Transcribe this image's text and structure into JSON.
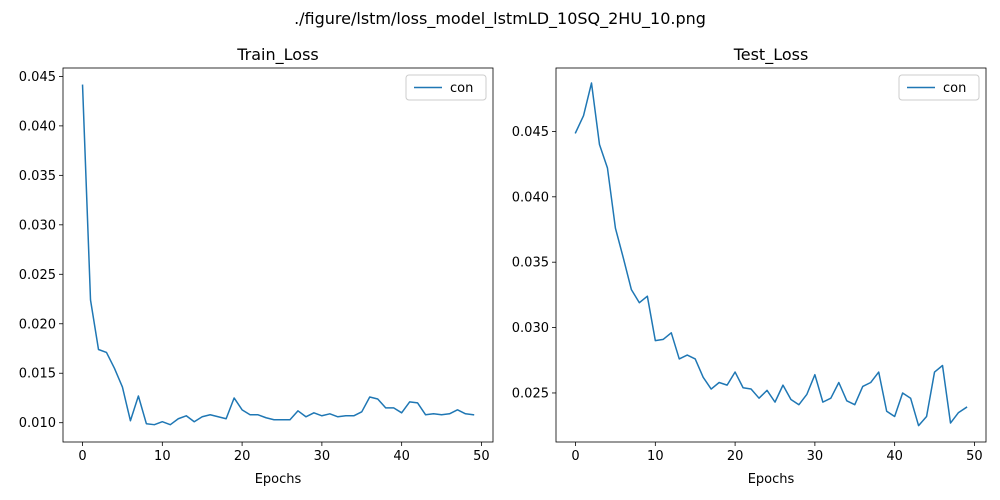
{
  "figure_title": "./figure/lstm/loss_model_lstmLD_10SQ_2HU_10.png",
  "colors": {
    "series": "#1f77b4",
    "axes": "#000000",
    "legend_border": "#cccccc"
  },
  "chart_data": [
    {
      "type": "line",
      "title": "Train_Loss",
      "xlabel": "Epochs",
      "ylabel": "",
      "xlim": [
        -2.45,
        51.45
      ],
      "ylim": [
        0.00805,
        0.04585
      ],
      "xticks": [
        0,
        10,
        20,
        30,
        40,
        50
      ],
      "xtick_labels": [
        "0",
        "10",
        "20",
        "30",
        "40",
        "50"
      ],
      "yticks": [
        0.01,
        0.015,
        0.02,
        0.025,
        0.03,
        0.035,
        0.04,
        0.045
      ],
      "ytick_labels": [
        "0.010",
        "0.015",
        "0.020",
        "0.025",
        "0.030",
        "0.035",
        "0.040",
        "0.045"
      ],
      "grid": false,
      "legend_position": "top-right",
      "series": [
        {
          "name": "con",
          "x": [
            0,
            1,
            2,
            3,
            4,
            5,
            6,
            7,
            8,
            9,
            10,
            11,
            12,
            13,
            14,
            15,
            16,
            17,
            18,
            19,
            20,
            21,
            22,
            23,
            24,
            25,
            26,
            27,
            28,
            29,
            30,
            31,
            32,
            33,
            34,
            35,
            36,
            37,
            38,
            39,
            40,
            41,
            42,
            43,
            44,
            45,
            46,
            47,
            48,
            49
          ],
          "values": [
            0.0441,
            0.0224,
            0.0174,
            0.0171,
            0.0155,
            0.0136,
            0.0102,
            0.0127,
            0.0099,
            0.0098,
            0.0101,
            0.0098,
            0.0104,
            0.0107,
            0.0101,
            0.0106,
            0.0108,
            0.0106,
            0.0104,
            0.0125,
            0.0113,
            0.0108,
            0.0108,
            0.0105,
            0.0103,
            0.0103,
            0.0103,
            0.0112,
            0.0106,
            0.011,
            0.0107,
            0.0109,
            0.0106,
            0.0107,
            0.0107,
            0.0111,
            0.0126,
            0.0124,
            0.0115,
            0.0115,
            0.011,
            0.0121,
            0.012,
            0.0108,
            0.0109,
            0.0108,
            0.0109,
            0.0113,
            0.0109,
            0.0108
          ]
        }
      ]
    },
    {
      "type": "line",
      "title": "Test_Loss",
      "xlabel": "Epochs",
      "ylabel": "",
      "xlim": [
        -2.45,
        51.45
      ],
      "ylim": [
        0.02125,
        0.04985
      ],
      "xticks": [
        0,
        10,
        20,
        30,
        40,
        50
      ],
      "xtick_labels": [
        "0",
        "10",
        "20",
        "30",
        "40",
        "50"
      ],
      "yticks": [
        0.025,
        0.03,
        0.035,
        0.04,
        0.045
      ],
      "ytick_labels": [
        "0.025",
        "0.030",
        "0.035",
        "0.040",
        "0.045"
      ],
      "grid": false,
      "legend_position": "top-right",
      "series": [
        {
          "name": "con",
          "x": [
            0,
            1,
            2,
            3,
            4,
            5,
            6,
            7,
            8,
            9,
            10,
            11,
            12,
            13,
            14,
            15,
            16,
            17,
            18,
            19,
            20,
            21,
            22,
            23,
            24,
            25,
            26,
            27,
            28,
            29,
            30,
            31,
            32,
            33,
            34,
            35,
            36,
            37,
            38,
            39,
            40,
            41,
            42,
            43,
            44,
            45,
            46,
            47,
            48,
            49
          ],
          "values": [
            0.0449,
            0.0462,
            0.0487,
            0.044,
            0.0422,
            0.0376,
            0.0353,
            0.0329,
            0.0319,
            0.0324,
            0.029,
            0.0291,
            0.0296,
            0.0276,
            0.0279,
            0.0276,
            0.0262,
            0.0253,
            0.0258,
            0.0256,
            0.0266,
            0.0254,
            0.0253,
            0.0246,
            0.0252,
            0.0243,
            0.0256,
            0.0245,
            0.0241,
            0.0249,
            0.0264,
            0.0243,
            0.0246,
            0.0258,
            0.0244,
            0.0241,
            0.0255,
            0.0258,
            0.0266,
            0.0236,
            0.0232,
            0.025,
            0.0246,
            0.0225,
            0.0232,
            0.0266,
            0.0271,
            0.0227,
            0.0235,
            0.0239
          ]
        }
      ]
    }
  ]
}
